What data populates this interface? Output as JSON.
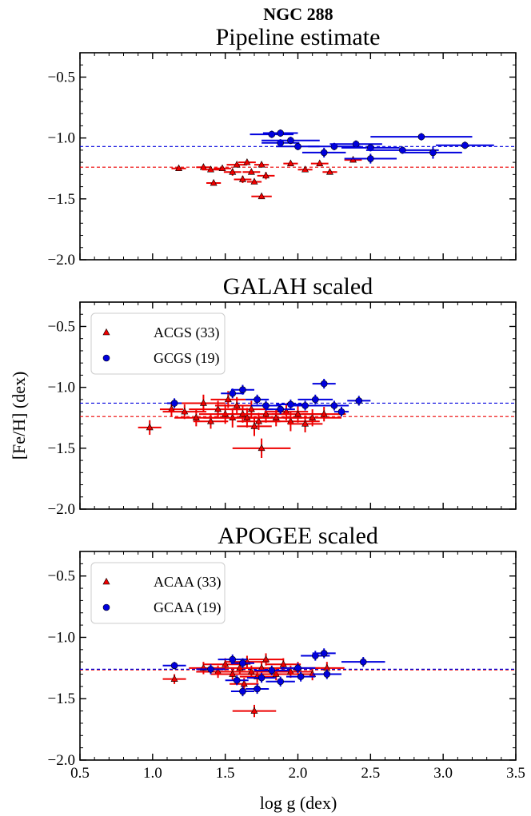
{
  "figure": {
    "suptitle": "NGC 288",
    "ylabel": "[Fe/H] (dex)",
    "xlabel": "log g (dex)",
    "xticks": [
      "0.5",
      "1.0",
      "1.5",
      "2.0",
      "2.5",
      "3.0",
      "3.5"
    ],
    "yticks": [
      "−0.5",
      "−1.0",
      "−1.5",
      "−2.0"
    ],
    "colors": {
      "acgs": "#ee0000",
      "gcgs": "#0000dd"
    }
  },
  "chart_data": [
    {
      "type": "scatter",
      "title": "Pipeline estimate",
      "xlim": [
        0.5,
        3.5
      ],
      "ylim": [
        -2.0,
        -0.3
      ],
      "grid": false,
      "legend": null,
      "hlines": [
        {
          "series": "red",
          "y": -1.24,
          "style": "dashed",
          "color": "#ee0000"
        },
        {
          "series": "blue",
          "y": -1.07,
          "style": "dashed",
          "color": "#0000dd"
        }
      ],
      "series": [
        {
          "marker": "triangle",
          "color": "#ee0000",
          "points": [
            {
              "x": 1.18,
              "y": -1.25,
              "xerr": 0.05,
              "yerr": 0.02
            },
            {
              "x": 1.35,
              "y": -1.24,
              "xerr": 0.05,
              "yerr": 0.02
            },
            {
              "x": 1.4,
              "y": -1.26,
              "xerr": 0.06,
              "yerr": 0.02
            },
            {
              "x": 1.48,
              "y": -1.25,
              "xerr": 0.06,
              "yerr": 0.02
            },
            {
              "x": 1.42,
              "y": -1.37,
              "xerr": 0.05,
              "yerr": 0.02
            },
            {
              "x": 1.55,
              "y": -1.28,
              "xerr": 0.06,
              "yerr": 0.03
            },
            {
              "x": 1.58,
              "y": -1.22,
              "xerr": 0.07,
              "yerr": 0.02
            },
            {
              "x": 1.62,
              "y": -1.34,
              "xerr": 0.06,
              "yerr": 0.03
            },
            {
              "x": 1.65,
              "y": -1.2,
              "xerr": 0.06,
              "yerr": 0.02
            },
            {
              "x": 1.68,
              "y": -1.28,
              "xerr": 0.06,
              "yerr": 0.02
            },
            {
              "x": 1.7,
              "y": -1.36,
              "xerr": 0.05,
              "yerr": 0.02
            },
            {
              "x": 1.75,
              "y": -1.22,
              "xerr": 0.05,
              "yerr": 0.02
            },
            {
              "x": 1.78,
              "y": -1.31,
              "xerr": 0.06,
              "yerr": 0.03
            },
            {
              "x": 1.75,
              "y": -1.48,
              "xerr": 0.07,
              "yerr": 0.02
            },
            {
              "x": 1.95,
              "y": -1.21,
              "xerr": 0.05,
              "yerr": 0.02
            },
            {
              "x": 2.05,
              "y": -1.26,
              "xerr": 0.05,
              "yerr": 0.02
            },
            {
              "x": 2.15,
              "y": -1.21,
              "xerr": 0.06,
              "yerr": 0.02
            },
            {
              "x": 2.22,
              "y": -1.28,
              "xerr": 0.05,
              "yerr": 0.02
            },
            {
              "x": 2.38,
              "y": -1.18,
              "xerr": 0.06,
              "yerr": 0.02
            }
          ]
        },
        {
          "marker": "circle",
          "color": "#0000dd",
          "points": [
            {
              "x": 1.82,
              "y": -0.97,
              "xerr": 0.15,
              "yerr": 0.03
            },
            {
              "x": 1.88,
              "y": -0.96,
              "xerr": 0.12,
              "yerr": 0.03
            },
            {
              "x": 1.88,
              "y": -1.04,
              "xerr": 0.13,
              "yerr": 0.03
            },
            {
              "x": 1.95,
              "y": -1.02,
              "xerr": 0.2,
              "yerr": 0.03
            },
            {
              "x": 2.0,
              "y": -1.07,
              "xerr": 0.15,
              "yerr": 0.03
            },
            {
              "x": 2.18,
              "y": -1.12,
              "xerr": 0.15,
              "yerr": 0.04
            },
            {
              "x": 2.25,
              "y": -1.07,
              "xerr": 0.18,
              "yerr": 0.03
            },
            {
              "x": 2.4,
              "y": -1.05,
              "xerr": 0.18,
              "yerr": 0.03
            },
            {
              "x": 2.5,
              "y": -1.08,
              "xerr": 0.2,
              "yerr": 0.03
            },
            {
              "x": 2.5,
              "y": -1.17,
              "xerr": 0.18,
              "yerr": 0.04
            },
            {
              "x": 2.72,
              "y": -1.1,
              "xerr": 0.25,
              "yerr": 0.03
            },
            {
              "x": 2.85,
              "y": -0.99,
              "xerr": 0.35,
              "yerr": 0.03
            },
            {
              "x": 2.93,
              "y": -1.12,
              "xerr": 0.2,
              "yerr": 0.05
            },
            {
              "x": 3.15,
              "y": -1.06,
              "xerr": 0.2,
              "yerr": 0.03
            }
          ]
        }
      ]
    },
    {
      "type": "scatter",
      "title": "GALAH scaled",
      "xlim": [
        0.5,
        3.5
      ],
      "ylim": [
        -2.0,
        -0.3
      ],
      "grid": false,
      "legend": "upper-left",
      "hlines": [
        {
          "series": "ACGS (33)",
          "y": -1.24,
          "style": "dashed",
          "color": "#ee0000"
        },
        {
          "series": "GCGS (19)",
          "y": -1.13,
          "style": "dashed",
          "color": "#0000dd"
        }
      ],
      "series": [
        {
          "name": "ACGS (33)",
          "marker": "triangle",
          "color": "#ee0000",
          "points": [
            {
              "x": 0.98,
              "y": -1.33,
              "xerr": 0.08,
              "yerr": 0.06
            },
            {
              "x": 1.13,
              "y": -1.18,
              "xerr": 0.08,
              "yerr": 0.06
            },
            {
              "x": 1.22,
              "y": -1.2,
              "xerr": 0.15,
              "yerr": 0.06
            },
            {
              "x": 1.3,
              "y": -1.25,
              "xerr": 0.15,
              "yerr": 0.07
            },
            {
              "x": 1.35,
              "y": -1.13,
              "xerr": 0.15,
              "yerr": 0.07
            },
            {
              "x": 1.4,
              "y": -1.28,
              "xerr": 0.12,
              "yerr": 0.06
            },
            {
              "x": 1.45,
              "y": -1.18,
              "xerr": 0.2,
              "yerr": 0.07
            },
            {
              "x": 1.5,
              "y": -1.22,
              "xerr": 0.18,
              "yerr": 0.08
            },
            {
              "x": 1.52,
              "y": -1.1,
              "xerr": 0.12,
              "yerr": 0.07
            },
            {
              "x": 1.55,
              "y": -1.25,
              "xerr": 0.2,
              "yerr": 0.08
            },
            {
              "x": 1.58,
              "y": -1.15,
              "xerr": 0.15,
              "yerr": 0.07
            },
            {
              "x": 1.62,
              "y": -1.22,
              "xerr": 0.18,
              "yerr": 0.07
            },
            {
              "x": 1.65,
              "y": -1.25,
              "xerr": 0.2,
              "yerr": 0.08
            },
            {
              "x": 1.68,
              "y": -1.18,
              "xerr": 0.15,
              "yerr": 0.07
            },
            {
              "x": 1.7,
              "y": -1.32,
              "xerr": 0.12,
              "yerr": 0.08
            },
            {
              "x": 1.73,
              "y": -1.28,
              "xerr": 0.15,
              "yerr": 0.07
            },
            {
              "x": 1.75,
              "y": -1.5,
              "xerr": 0.2,
              "yerr": 0.08
            },
            {
              "x": 1.78,
              "y": -1.22,
              "xerr": 0.15,
              "yerr": 0.07
            },
            {
              "x": 1.85,
              "y": -1.25,
              "xerr": 0.18,
              "yerr": 0.07
            },
            {
              "x": 1.92,
              "y": -1.2,
              "xerr": 0.15,
              "yerr": 0.07
            },
            {
              "x": 1.95,
              "y": -1.28,
              "xerr": 0.2,
              "yerr": 0.08
            },
            {
              "x": 2.0,
              "y": -1.22,
              "xerr": 0.18,
              "yerr": 0.07
            },
            {
              "x": 2.05,
              "y": -1.3,
              "xerr": 0.12,
              "yerr": 0.07
            },
            {
              "x": 2.1,
              "y": -1.25,
              "xerr": 0.2,
              "yerr": 0.07
            },
            {
              "x": 2.18,
              "y": -1.22,
              "xerr": 0.15,
              "yerr": 0.06
            }
          ]
        },
        {
          "name": "GCGS (19)",
          "marker": "circle",
          "color": "#0000dd",
          "points": [
            {
              "x": 1.15,
              "y": -1.13,
              "xerr": 0.05,
              "yerr": 0.04
            },
            {
              "x": 1.55,
              "y": -1.05,
              "xerr": 0.08,
              "yerr": 0.04
            },
            {
              "x": 1.62,
              "y": -1.02,
              "xerr": 0.08,
              "yerr": 0.04
            },
            {
              "x": 1.72,
              "y": -1.1,
              "xerr": 0.08,
              "yerr": 0.04
            },
            {
              "x": 1.78,
              "y": -1.15,
              "xerr": 0.1,
              "yerr": 0.04
            },
            {
              "x": 1.88,
              "y": -1.18,
              "xerr": 0.1,
              "yerr": 0.04
            },
            {
              "x": 1.95,
              "y": -1.14,
              "xerr": 0.1,
              "yerr": 0.04
            },
            {
              "x": 2.05,
              "y": -1.15,
              "xerr": 0.12,
              "yerr": 0.04
            },
            {
              "x": 2.12,
              "y": -1.1,
              "xerr": 0.12,
              "yerr": 0.04
            },
            {
              "x": 2.18,
              "y": -0.97,
              "xerr": 0.08,
              "yerr": 0.04
            },
            {
              "x": 2.25,
              "y": -1.15,
              "xerr": 0.1,
              "yerr": 0.04
            },
            {
              "x": 2.3,
              "y": -1.2,
              "xerr": 0.05,
              "yerr": 0.04
            },
            {
              "x": 2.42,
              "y": -1.11,
              "xerr": 0.08,
              "yerr": 0.04
            }
          ]
        }
      ]
    },
    {
      "type": "scatter",
      "title": "APOGEE scaled",
      "xlim": [
        0.5,
        3.5
      ],
      "ylim": [
        -2.0,
        -0.3
      ],
      "grid": false,
      "legend": "upper-left",
      "hlines": [
        {
          "series": "ACAA (33)",
          "y": -1.265,
          "style": "dashed",
          "color": "#ee0000"
        },
        {
          "series": "GCAA (19)",
          "y": -1.26,
          "style": "dashed",
          "color": "#0000dd"
        }
      ],
      "series": [
        {
          "name": "ACAA (33)",
          "marker": "triangle",
          "color": "#ee0000",
          "points": [
            {
              "x": 1.15,
              "y": -1.34,
              "xerr": 0.08,
              "yerr": 0.04
            },
            {
              "x": 1.35,
              "y": -1.25,
              "xerr": 0.1,
              "yerr": 0.05
            },
            {
              "x": 1.45,
              "y": -1.28,
              "xerr": 0.15,
              "yerr": 0.05
            },
            {
              "x": 1.5,
              "y": -1.22,
              "xerr": 0.15,
              "yerr": 0.05
            },
            {
              "x": 1.55,
              "y": -1.3,
              "xerr": 0.15,
              "yerr": 0.05
            },
            {
              "x": 1.6,
              "y": -1.25,
              "xerr": 0.18,
              "yerr": 0.05
            },
            {
              "x": 1.63,
              "y": -1.38,
              "xerr": 0.1,
              "yerr": 0.05
            },
            {
              "x": 1.65,
              "y": -1.2,
              "xerr": 0.15,
              "yerr": 0.05
            },
            {
              "x": 1.68,
              "y": -1.28,
              "xerr": 0.12,
              "yerr": 0.05
            },
            {
              "x": 1.7,
              "y": -1.6,
              "xerr": 0.15,
              "yerr": 0.05
            },
            {
              "x": 1.72,
              "y": -1.32,
              "xerr": 0.12,
              "yerr": 0.05
            },
            {
              "x": 1.75,
              "y": -1.25,
              "xerr": 0.15,
              "yerr": 0.05
            },
            {
              "x": 1.78,
              "y": -1.18,
              "xerr": 0.12,
              "yerr": 0.05
            },
            {
              "x": 1.85,
              "y": -1.3,
              "xerr": 0.15,
              "yerr": 0.05
            },
            {
              "x": 1.9,
              "y": -1.22,
              "xerr": 0.12,
              "yerr": 0.05
            },
            {
              "x": 1.95,
              "y": -1.28,
              "xerr": 0.15,
              "yerr": 0.05
            },
            {
              "x": 2.0,
              "y": -1.25,
              "xerr": 0.15,
              "yerr": 0.05
            },
            {
              "x": 2.1,
              "y": -1.3,
              "xerr": 0.15,
              "yerr": 0.05
            },
            {
              "x": 2.2,
              "y": -1.25,
              "xerr": 0.12,
              "yerr": 0.05
            }
          ]
        },
        {
          "name": "GCAA (19)",
          "marker": "circle",
          "color": "#0000dd",
          "points": [
            {
              "x": 1.15,
              "y": -1.23,
              "xerr": 0.08,
              "yerr": 0.03
            },
            {
              "x": 1.4,
              "y": -1.26,
              "xerr": 0.1,
              "yerr": 0.04
            },
            {
              "x": 1.55,
              "y": -1.18,
              "xerr": 0.1,
              "yerr": 0.04
            },
            {
              "x": 1.58,
              "y": -1.35,
              "xerr": 0.08,
              "yerr": 0.04
            },
            {
              "x": 1.62,
              "y": -1.44,
              "xerr": 0.08,
              "yerr": 0.04
            },
            {
              "x": 1.62,
              "y": -1.21,
              "xerr": 0.08,
              "yerr": 0.04
            },
            {
              "x": 1.72,
              "y": -1.42,
              "xerr": 0.08,
              "yerr": 0.04
            },
            {
              "x": 1.75,
              "y": -1.33,
              "xerr": 0.1,
              "yerr": 0.04
            },
            {
              "x": 1.82,
              "y": -1.27,
              "xerr": 0.12,
              "yerr": 0.04
            },
            {
              "x": 1.88,
              "y": -1.36,
              "xerr": 0.1,
              "yerr": 0.04
            },
            {
              "x": 2.0,
              "y": -1.25,
              "xerr": 0.12,
              "yerr": 0.04
            },
            {
              "x": 2.02,
              "y": -1.32,
              "xerr": 0.1,
              "yerr": 0.04
            },
            {
              "x": 2.12,
              "y": -1.15,
              "xerr": 0.1,
              "yerr": 0.04
            },
            {
              "x": 2.18,
              "y": -1.13,
              "xerr": 0.08,
              "yerr": 0.04
            },
            {
              "x": 2.2,
              "y": -1.3,
              "xerr": 0.1,
              "yerr": 0.04
            },
            {
              "x": 2.45,
              "y": -1.2,
              "xerr": 0.15,
              "yerr": 0.04
            }
          ]
        }
      ]
    }
  ]
}
